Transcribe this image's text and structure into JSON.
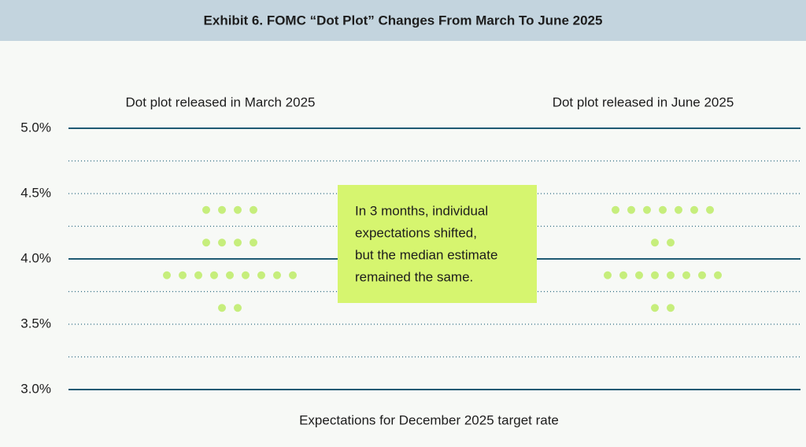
{
  "chart_data": {
    "type": "dot",
    "title": "Exhibit 6. FOMC “Dot Plot” Changes From March To June 2025",
    "x_label": "Expectations for December 2025 target rate",
    "annotation": [
      "In 3 months, individual",
      "expectations shifted,",
      "but the median estimate",
      "remained the same."
    ],
    "ylim": [
      3.0,
      5.0
    ],
    "yticks": [
      {
        "value": 3.0,
        "label": "3.0%"
      },
      {
        "value": 3.5,
        "label": "3.5%"
      },
      {
        "value": 4.0,
        "label": "4.0%"
      },
      {
        "value": 4.5,
        "label": "4.5%"
      },
      {
        "value": 5.0,
        "label": "5.0%"
      }
    ],
    "minor_yticks": [
      3.25,
      3.75,
      4.25,
      4.75
    ],
    "solid_gridlines": [
      3.0,
      4.0,
      5.0
    ],
    "grid": true,
    "series": [
      {
        "name": "Dot plot released in March 2025",
        "color": "#c6ee7c",
        "values": [
          4.375,
          4.375,
          4.375,
          4.375,
          4.125,
          4.125,
          4.125,
          4.125,
          3.875,
          3.875,
          3.875,
          3.875,
          3.875,
          3.875,
          3.875,
          3.875,
          3.875,
          3.625,
          3.625
        ]
      },
      {
        "name": "Dot plot released in June 2025",
        "color": "#c6ee7c",
        "values": [
          4.375,
          4.375,
          4.375,
          4.375,
          4.375,
          4.375,
          4.375,
          4.125,
          4.125,
          3.875,
          3.875,
          3.875,
          3.875,
          3.875,
          3.875,
          3.875,
          3.875,
          3.625,
          3.625
        ]
      }
    ]
  }
}
